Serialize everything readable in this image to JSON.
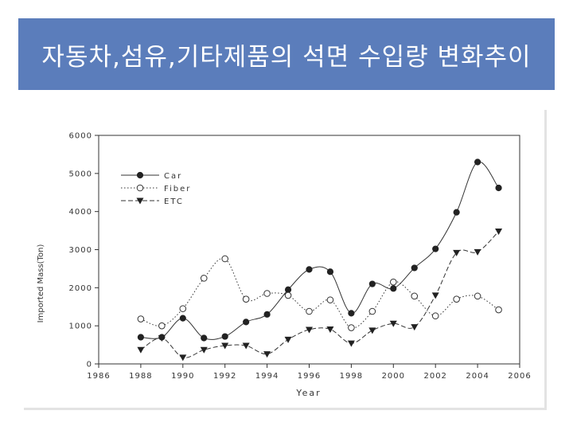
{
  "slide": {
    "title": "자동차,섬유,기타제품의 석면 수입량 변화추이"
  },
  "chart_data": {
    "type": "line",
    "xlabel": "Year",
    "ylabel": "Imported Mass(Ton)",
    "xlim": [
      1986,
      2006
    ],
    "ylim": [
      0,
      6000
    ],
    "x_ticks": [
      "1986",
      "1988",
      "1990",
      "1992",
      "1994",
      "1996",
      "1998",
      "2000",
      "2002",
      "2004",
      "2006"
    ],
    "y_ticks": [
      "0",
      "1000",
      "2000",
      "3000",
      "4000",
      "5000",
      "6000"
    ],
    "legend_position": "top-left",
    "grid": false,
    "x": [
      1988,
      1989,
      1990,
      1991,
      1992,
      1993,
      1994,
      1995,
      1996,
      1997,
      1998,
      1999,
      2000,
      2001,
      2002,
      2003,
      2004,
      2005
    ],
    "series": [
      {
        "name": "Car",
        "style": "solid",
        "marker": "filled-circle",
        "color": "#333333",
        "values": [
          700,
          700,
          1200,
          680,
          720,
          1100,
          1300,
          1950,
          2480,
          2420,
          1330,
          2100,
          1980,
          2520,
          3020,
          3980,
          5300,
          4620
        ]
      },
      {
        "name": "Fiber",
        "style": "dotted",
        "marker": "open-circle",
        "color": "#333333",
        "values": [
          1180,
          1000,
          1450,
          2250,
          2760,
          1700,
          1850,
          1800,
          1380,
          1680,
          950,
          1380,
          2150,
          1780,
          1260,
          1700,
          1780,
          1420
        ]
      },
      {
        "name": "ETC",
        "style": "dashed",
        "marker": "filled-triangle-down",
        "color": "#333333",
        "values": [
          370,
          680,
          170,
          370,
          480,
          480,
          260,
          640,
          900,
          910,
          540,
          880,
          1060,
          970,
          1800,
          2920,
          2940,
          3480
        ]
      }
    ]
  }
}
